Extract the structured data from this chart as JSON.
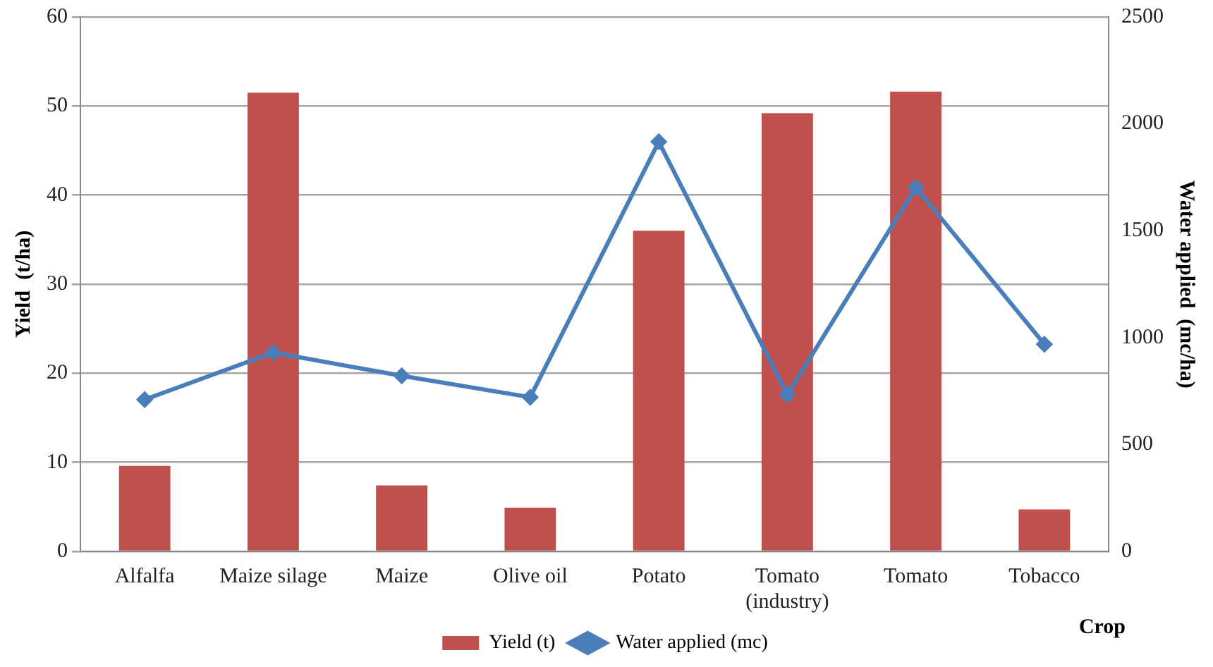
{
  "chart_data": {
    "type": "bar",
    "xlabel": "Crop",
    "ylabel": "Yield  (t/ha)",
    "y2label": "Water applied  (mc/ha)",
    "categories": [
      "Alfalfa",
      "Maize silage",
      "Maize",
      "Olive oil",
      "Potato",
      "Tomato\n(industry)",
      "Tomato",
      "Tobacco"
    ],
    "series": [
      {
        "name": "Yield (t)",
        "color": "#c0504d",
        "values": [
          9.6,
          51.5,
          7.4,
          4.9,
          36.0,
          49.2,
          51.6,
          4.7
        ]
      },
      {
        "name": "Water applied (mc)",
        "type": "line",
        "axis": "y2",
        "color": "#4a7ebb",
        "marker": "diamond",
        "values": [
          710,
          930,
          821,
          721,
          1916,
          733,
          1702,
          969
        ]
      }
    ],
    "ylim": [
      0,
      60
    ],
    "yticks": [
      0,
      10,
      20,
      30,
      40,
      50,
      60
    ],
    "y2lim": [
      0,
      2500
    ],
    "y2ticks": [
      0,
      500,
      1000,
      1500,
      2000,
      2500
    ],
    "grid": "y",
    "legend": "bottom"
  }
}
